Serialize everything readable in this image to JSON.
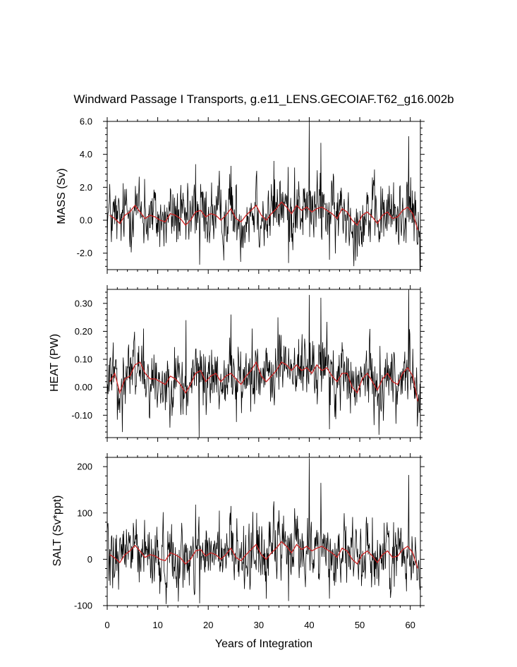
{
  "chart_data": {
    "type": "line",
    "title": "Windward Passage I Transports, g.e11_LENS.GECOIAF.T62_g16.002b",
    "xlabel": "Years of Integration",
    "xlim": [
      0,
      62
    ],
    "xticks": [
      "0",
      "10",
      "20",
      "30",
      "40",
      "50",
      "60"
    ],
    "series_colors": {
      "monthly": "#000000",
      "annual": "#cc2222"
    },
    "panels": [
      {
        "name": "mass",
        "ylabel": "MASS (Sv)",
        "ylim": [
          -3.0,
          6.0
        ],
        "yticks": [
          {
            "value": 6.0,
            "label": "6.0"
          },
          {
            "value": 4.0,
            "label": "4.0"
          },
          {
            "value": 2.0,
            "label": "2.0"
          },
          {
            "value": 0.0,
            "label": "0.0"
          },
          {
            "value": -2.0,
            "label": "-2.0"
          }
        ],
        "amplitude": 1.0,
        "mean_annual": [
          0.3,
          0.1,
          -0.2,
          0.3,
          0.5,
          0.9,
          0.5,
          0.1,
          0.3,
          0.2,
          0.0,
          -0.1,
          0.4,
          0.3,
          0.1,
          -0.3,
          0.0,
          0.5,
          0.6,
          0.2,
          0.4,
          0.3,
          0.0,
          0.3,
          0.7,
          0.1,
          -0.1,
          0.3,
          0.6,
          0.9,
          0.3,
          0.0,
          0.4,
          0.7,
          1.1,
          0.8,
          0.4,
          0.9,
          0.6,
          0.8,
          0.5,
          0.7,
          0.8,
          0.6,
          0.4,
          0.1,
          0.7,
          0.5,
          0.0,
          -0.3,
          0.3,
          0.5,
          0.2,
          -0.2,
          0.3,
          0.5,
          0.1,
          0.2,
          0.6,
          0.8,
          0.4,
          -0.6
        ],
        "spikes": [
          [
            3.8,
            1.9
          ],
          [
            7.4,
            2.5
          ],
          [
            17.5,
            3.4
          ],
          [
            18.3,
            -2.7
          ],
          [
            22.2,
            3.0
          ],
          [
            24.5,
            3.3
          ],
          [
            29.6,
            3.0
          ],
          [
            33.0,
            3.6
          ],
          [
            35.9,
            -2.6
          ],
          [
            37.1,
            3.2
          ],
          [
            40.0,
            6.0
          ],
          [
            42.3,
            4.7
          ],
          [
            44.0,
            -2.4
          ],
          [
            52.5,
            2.6
          ],
          [
            56.7,
            2.3
          ],
          [
            59.7,
            5.1
          ],
          [
            61.3,
            -1.3
          ]
        ]
      },
      {
        "name": "heat",
        "ylabel": "HEAT (PW)",
        "ylim": [
          -0.18,
          0.35
        ],
        "yticks": [
          {
            "value": 0.3,
            "label": "0.30"
          },
          {
            "value": 0.2,
            "label": "0.20"
          },
          {
            "value": 0.1,
            "label": "0.10"
          },
          {
            "value": 0.0,
            "label": "0.00"
          },
          {
            "value": -0.1,
            "label": "-0.10"
          }
        ],
        "amplitude": 0.06,
        "mean_annual": [
          0.02,
          0.05,
          -0.02,
          0.03,
          0.04,
          0.08,
          0.09,
          0.05,
          0.03,
          0.03,
          0.02,
          0.01,
          0.04,
          0.03,
          0.01,
          -0.02,
          0.01,
          0.05,
          0.06,
          0.02,
          0.04,
          0.05,
          0.02,
          0.04,
          0.05,
          0.03,
          0.01,
          0.04,
          0.06,
          0.09,
          0.04,
          0.02,
          0.04,
          0.06,
          0.09,
          0.08,
          0.06,
          0.08,
          0.06,
          0.07,
          0.05,
          0.08,
          0.06,
          0.07,
          0.04,
          0.02,
          0.05,
          0.05,
          0.0,
          -0.02,
          0.03,
          0.05,
          0.02,
          -0.01,
          0.03,
          0.05,
          0.02,
          0.01,
          0.05,
          0.07,
          0.04,
          -0.05
        ],
        "spikes": [
          [
            1.2,
            0.16
          ],
          [
            3.0,
            -0.16
          ],
          [
            7.2,
            0.21
          ],
          [
            15.6,
            0.24
          ],
          [
            18.2,
            -0.18
          ],
          [
            24.5,
            0.26
          ],
          [
            28.7,
            0.21
          ],
          [
            33.8,
            0.25
          ],
          [
            40.0,
            0.33
          ],
          [
            42.3,
            0.32
          ],
          [
            44.0,
            -0.15
          ],
          [
            53.8,
            -0.17
          ],
          [
            59.7,
            0.35
          ],
          [
            61.4,
            -0.14
          ]
        ]
      },
      {
        "name": "salt",
        "ylabel": "SALT (Sv*ppt)",
        "ylim": [
          -100,
          220
        ],
        "yticks": [
          {
            "value": 200,
            "label": "200"
          },
          {
            "value": 100,
            "label": "100"
          },
          {
            "value": 0,
            "label": "0"
          },
          {
            "value": -100,
            "label": "-100"
          }
        ],
        "amplitude": 35,
        "mean_annual": [
          10,
          3,
          -7,
          10,
          18,
          30,
          18,
          4,
          10,
          7,
          0,
          -3,
          14,
          10,
          3,
          -10,
          0,
          18,
          21,
          7,
          14,
          10,
          0,
          10,
          24,
          4,
          -3,
          10,
          21,
          32,
          10,
          0,
          14,
          24,
          38,
          28,
          14,
          32,
          21,
          28,
          18,
          24,
          28,
          21,
          14,
          4,
          24,
          18,
          0,
          -10,
          10,
          18,
          7,
          -7,
          10,
          18,
          4,
          7,
          21,
          28,
          14,
          -20
        ],
        "spikes": [
          [
            3.8,
            65
          ],
          [
            7.4,
            85
          ],
          [
            17.5,
            118
          ],
          [
            18.3,
            -95
          ],
          [
            22.2,
            105
          ],
          [
            24.5,
            115
          ],
          [
            29.6,
            100
          ],
          [
            33.0,
            125
          ],
          [
            35.9,
            -90
          ],
          [
            37.1,
            110
          ],
          [
            40.0,
            218
          ],
          [
            42.3,
            165
          ],
          [
            44.0,
            -85
          ],
          [
            52.5,
            90
          ],
          [
            56.7,
            80
          ],
          [
            59.7,
            182
          ],
          [
            61.3,
            -45
          ]
        ]
      }
    ]
  }
}
